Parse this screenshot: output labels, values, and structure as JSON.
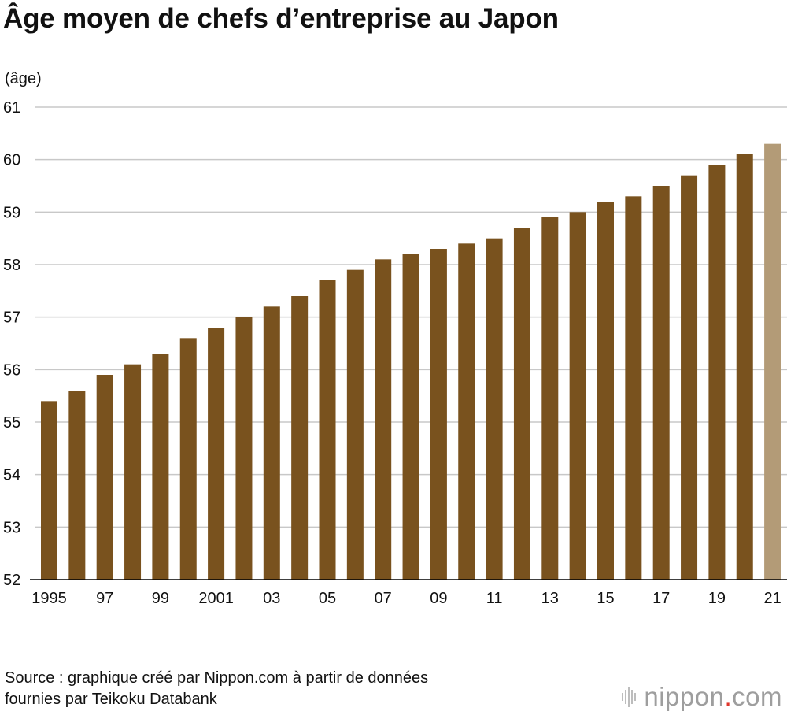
{
  "title": "Âge moyen de chefs d’entreprise au Japon",
  "source_line1": "Source : graphique créé par Nippon.com à partir de données",
  "source_line2": "fournies par Teikoku Databank",
  "logo": {
    "left": "nippon",
    "dot": ".",
    "right": "com"
  },
  "colors": {
    "bar": "#79521e",
    "bar_highlight": "#b39b77",
    "grid": "#c8c8c8",
    "axis": "#000000"
  },
  "chart_data": {
    "type": "bar",
    "title": "Âge moyen de chefs d’entreprise au Japon",
    "ylabel": "(âge)",
    "xlabel": "",
    "ylim": [
      52,
      61
    ],
    "yticks": [
      52,
      53,
      54,
      55,
      56,
      57,
      58,
      59,
      60,
      61
    ],
    "grid": true,
    "categories": [
      "1995",
      "1996",
      "1997",
      "1998",
      "1999",
      "2000",
      "2001",
      "2002",
      "2003",
      "2004",
      "2005",
      "2006",
      "2007",
      "2008",
      "2009",
      "2010",
      "2011",
      "2012",
      "2013",
      "2014",
      "2015",
      "2016",
      "2017",
      "2018",
      "2019",
      "2020",
      "2021"
    ],
    "tick_labels": [
      "1995",
      "",
      "97",
      "",
      "99",
      "",
      "2001",
      "",
      "03",
      "",
      "05",
      "",
      "07",
      "",
      "09",
      "",
      "11",
      "",
      "13",
      "",
      "15",
      "",
      "17",
      "",
      "19",
      "",
      "21"
    ],
    "values": [
      55.4,
      55.6,
      55.9,
      56.1,
      56.3,
      56.6,
      56.8,
      57.0,
      57.2,
      57.4,
      57.7,
      57.9,
      58.1,
      58.2,
      58.3,
      58.4,
      58.5,
      58.7,
      58.9,
      59.0,
      59.2,
      59.3,
      59.5,
      59.7,
      59.9,
      60.1,
      60.3
    ],
    "highlight_index": 26
  }
}
